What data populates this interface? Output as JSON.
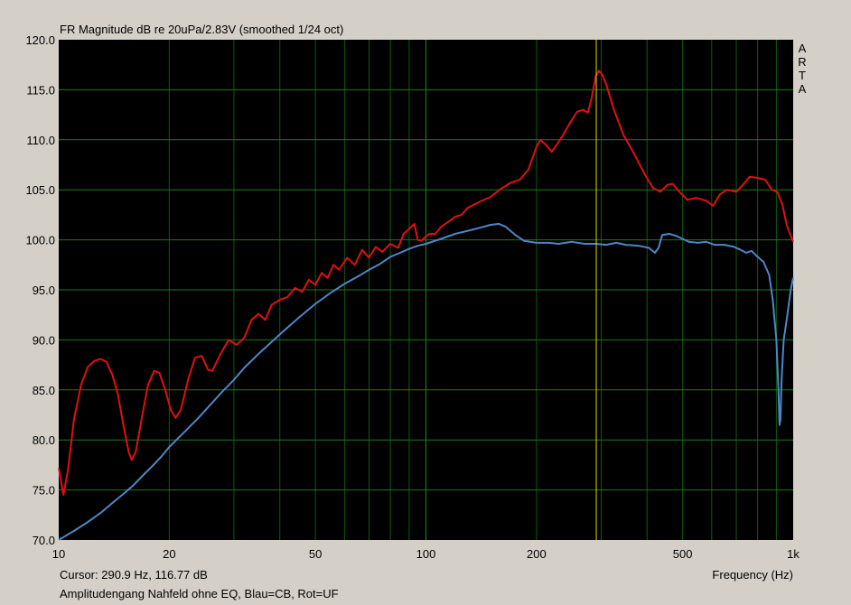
{
  "chart_data": {
    "type": "line",
    "title": "FR Magnitude dB re 20uPa/2.83V (smoothed 1/24 oct)",
    "xlabel": "Frequency (Hz)",
    "ylabel": "",
    "x_scale": "log",
    "xlim": [
      10,
      1000
    ],
    "ylim": [
      70,
      120
    ],
    "y_ticks": [
      "120.0",
      "115.0",
      "110.0",
      "105.0",
      "100.0",
      "95.0",
      "90.0",
      "85.0",
      "80.0",
      "75.0",
      "70.0"
    ],
    "x_tick_labels": [
      {
        "value": 10,
        "label": "10"
      },
      {
        "value": 20,
        "label": "20"
      },
      {
        "value": 50,
        "label": "50"
      },
      {
        "value": 100,
        "label": "100"
      },
      {
        "value": 200,
        "label": "200"
      },
      {
        "value": 500,
        "label": "500"
      },
      {
        "value": 1000,
        "label": "1k"
      }
    ],
    "grid": true,
    "cursor_x": 290.9,
    "series": [
      {
        "color": "#e01010",
        "points": [
          [
            10,
            77.2
          ],
          [
            10.3,
            74.5
          ],
          [
            10.6,
            77
          ],
          [
            11,
            82
          ],
          [
            11.5,
            85.5
          ],
          [
            12,
            87.3
          ],
          [
            12.5,
            87.9
          ],
          [
            13,
            88.1
          ],
          [
            13.5,
            87.8
          ],
          [
            14,
            86.5
          ],
          [
            14.5,
            84.5
          ],
          [
            15,
            81.5
          ],
          [
            15.5,
            78.8
          ],
          [
            15.8,
            78
          ],
          [
            16.2,
            78.8
          ],
          [
            16.8,
            82
          ],
          [
            17.5,
            85.5
          ],
          [
            18.2,
            86.9
          ],
          [
            18.8,
            86.7
          ],
          [
            19.5,
            85
          ],
          [
            20.2,
            83
          ],
          [
            20.8,
            82.2
          ],
          [
            21.5,
            83
          ],
          [
            22.5,
            86
          ],
          [
            23.5,
            88.2
          ],
          [
            24.5,
            88.4
          ],
          [
            25.5,
            87
          ],
          [
            26.2,
            86.9
          ],
          [
            27.5,
            88.5
          ],
          [
            29,
            90
          ],
          [
            30.5,
            89.5
          ],
          [
            32,
            90.2
          ],
          [
            33.5,
            92
          ],
          [
            35,
            92.6
          ],
          [
            36.5,
            92
          ],
          [
            38,
            93.5
          ],
          [
            40,
            94
          ],
          [
            42,
            94.3
          ],
          [
            44,
            95.2
          ],
          [
            46,
            94.8
          ],
          [
            48,
            96
          ],
          [
            50,
            95.5
          ],
          [
            52,
            96.7
          ],
          [
            54,
            96.2
          ],
          [
            56,
            97.5
          ],
          [
            58,
            97
          ],
          [
            61,
            98.2
          ],
          [
            64,
            97.5
          ],
          [
            67,
            99
          ],
          [
            70,
            98.2
          ],
          [
            73,
            99.3
          ],
          [
            76,
            98.8
          ],
          [
            80,
            99.6
          ],
          [
            84,
            99.2
          ],
          [
            87,
            100.6
          ],
          [
            90,
            101.1
          ],
          [
            93,
            101.6
          ],
          [
            95,
            100
          ],
          [
            97,
            99.9
          ],
          [
            102,
            100.6
          ],
          [
            106,
            100.6
          ],
          [
            110,
            101.3
          ],
          [
            115,
            101.8
          ],
          [
            120,
            102.3
          ],
          [
            125,
            102.5
          ],
          [
            130,
            103.2
          ],
          [
            140,
            103.8
          ],
          [
            150,
            104.3
          ],
          [
            160,
            105.1
          ],
          [
            170,
            105.7
          ],
          [
            180,
            106
          ],
          [
            190,
            107
          ],
          [
            200,
            109.3
          ],
          [
            205,
            110
          ],
          [
            212,
            109.5
          ],
          [
            220,
            108.8
          ],
          [
            232,
            110
          ],
          [
            245,
            111.5
          ],
          [
            258,
            112.8
          ],
          [
            268,
            113
          ],
          [
            276,
            112.7
          ],
          [
            283,
            114.3
          ],
          [
            290,
            116.4
          ],
          [
            296,
            116.9
          ],
          [
            302,
            116.5
          ],
          [
            310,
            115.5
          ],
          [
            325,
            113
          ],
          [
            345,
            110.5
          ],
          [
            370,
            108.5
          ],
          [
            395,
            106.5
          ],
          [
            415,
            105.2
          ],
          [
            435,
            104.8
          ],
          [
            455,
            105.5
          ],
          [
            470,
            105.6
          ],
          [
            490,
            104.8
          ],
          [
            515,
            104
          ],
          [
            545,
            104.2
          ],
          [
            580,
            103.9
          ],
          [
            605,
            103.4
          ],
          [
            630,
            104.5
          ],
          [
            660,
            105
          ],
          [
            700,
            104.8
          ],
          [
            730,
            105.5
          ],
          [
            760,
            106.3
          ],
          [
            800,
            106.2
          ],
          [
            840,
            106
          ],
          [
            875,
            105
          ],
          [
            905,
            104.8
          ],
          [
            935,
            103.5
          ],
          [
            960,
            101.5
          ],
          [
            985,
            100.4
          ],
          [
            1000,
            99.8
          ]
        ]
      },
      {
        "color": "#4e86c8",
        "points": [
          [
            10,
            70
          ],
          [
            11,
            70.9
          ],
          [
            12,
            71.8
          ],
          [
            13,
            72.7
          ],
          [
            14,
            73.7
          ],
          [
            15,
            74.6
          ],
          [
            16,
            75.5
          ],
          [
            17,
            76.5
          ],
          [
            18,
            77.4
          ],
          [
            19,
            78.3
          ],
          [
            20,
            79.3
          ],
          [
            22,
            80.8
          ],
          [
            24,
            82.2
          ],
          [
            26,
            83.6
          ],
          [
            28,
            84.9
          ],
          [
            30,
            86
          ],
          [
            32,
            87.2
          ],
          [
            35,
            88.6
          ],
          [
            38,
            89.8
          ],
          [
            41,
            90.9
          ],
          [
            45,
            92.2
          ],
          [
            50,
            93.6
          ],
          [
            55,
            94.7
          ],
          [
            60,
            95.6
          ],
          [
            65,
            96.3
          ],
          [
            70,
            97
          ],
          [
            75,
            97.6
          ],
          [
            80,
            98.3
          ],
          [
            85,
            98.7
          ],
          [
            90,
            99.1
          ],
          [
            95,
            99.4
          ],
          [
            100,
            99.6
          ],
          [
            110,
            100.1
          ],
          [
            120,
            100.6
          ],
          [
            130,
            100.9
          ],
          [
            140,
            101.2
          ],
          [
            150,
            101.5
          ],
          [
            158,
            101.6
          ],
          [
            165,
            101.3
          ],
          [
            175,
            100.5
          ],
          [
            185,
            99.9
          ],
          [
            200,
            99.7
          ],
          [
            215,
            99.7
          ],
          [
            230,
            99.6
          ],
          [
            250,
            99.8
          ],
          [
            270,
            99.6
          ],
          [
            290,
            99.6
          ],
          [
            310,
            99.5
          ],
          [
            330,
            99.7
          ],
          [
            350,
            99.5
          ],
          [
            380,
            99.4
          ],
          [
            405,
            99.2
          ],
          [
            420,
            98.7
          ],
          [
            430,
            99.2
          ],
          [
            440,
            100.5
          ],
          [
            460,
            100.6
          ],
          [
            480,
            100.4
          ],
          [
            500,
            100.1
          ],
          [
            520,
            99.8
          ],
          [
            550,
            99.7
          ],
          [
            580,
            99.8
          ],
          [
            610,
            99.5
          ],
          [
            650,
            99.5
          ],
          [
            690,
            99.3
          ],
          [
            720,
            99
          ],
          [
            745,
            98.7
          ],
          [
            770,
            98.9
          ],
          [
            800,
            98.3
          ],
          [
            830,
            97.8
          ],
          [
            860,
            96.5
          ],
          [
            880,
            94
          ],
          [
            900,
            90
          ],
          [
            912,
            85
          ],
          [
            918,
            81.5
          ],
          [
            923,
            82
          ],
          [
            930,
            86
          ],
          [
            942,
            90
          ],
          [
            960,
            92
          ],
          [
            985,
            95
          ],
          [
            1000,
            96.2
          ]
        ]
      }
    ]
  },
  "cursor_readout": "Cursor: 290.9 Hz, 116.77 dB",
  "caption": "Amplitudengang Nahfeld ohne EQ, Blau=CB, Rot=UF",
  "brand_letters": [
    "A",
    "R",
    "T",
    "A"
  ],
  "colors": {
    "background": "#d4d0c8",
    "plot_bg": "#000000",
    "grid": "#0e5a10",
    "cursor": "#d8d800"
  }
}
